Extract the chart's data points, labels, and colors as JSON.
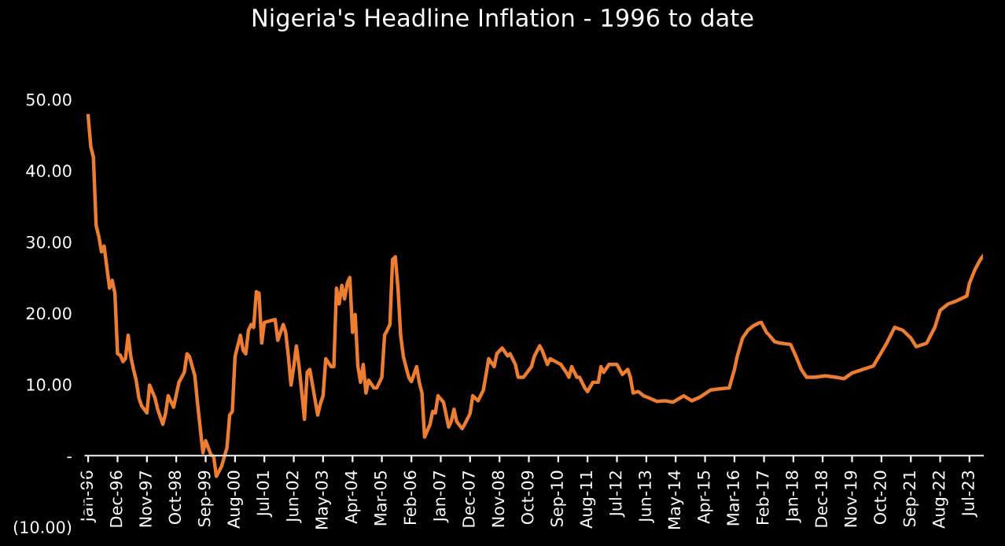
{
  "chart_data": {
    "type": "line",
    "title": "Nigeria's Headline Inflation - 1996 to date",
    "x": [
      "1996-01",
      "1996-02",
      "1996-03",
      "1996-04",
      "1996-05",
      "1996-06",
      "1996-07",
      "1996-09",
      "1996-10",
      "1996-11",
      "1996-12",
      "1997-01",
      "1997-02",
      "1997-03",
      "1997-04",
      "1997-05",
      "1997-06",
      "1997-07",
      "1997-08",
      "1997-09",
      "1997-11",
      "1997-12",
      "1998-02",
      "1998-03",
      "1998-05",
      "1998-06",
      "1998-07",
      "1998-09",
      "1998-11",
      "1999-01",
      "1999-02",
      "1999-03",
      "1999-05",
      "1999-06",
      "1999-08",
      "1999-09",
      "1999-11",
      "1999-12",
      "2000-01",
      "2000-03",
      "2000-05",
      "2000-06",
      "2000-07",
      "2000-08",
      "2000-10",
      "2000-11",
      "2000-12",
      "2001-01",
      "2001-02",
      "2001-03",
      "2001-04",
      "2001-05",
      "2001-06",
      "2001-07",
      "2001-09",
      "2001-11",
      "2001-12",
      "2002-02",
      "2002-03",
      "2002-04",
      "2002-05",
      "2002-06",
      "2002-07",
      "2002-08",
      "2002-09",
      "2002-10",
      "2002-11",
      "2002-12",
      "2003-01",
      "2003-03",
      "2003-04",
      "2003-05",
      "2003-06",
      "2003-08",
      "2003-09",
      "2003-10",
      "2003-11",
      "2003-12",
      "2004-01",
      "2004-02",
      "2004-03",
      "2004-04",
      "2004-05",
      "2004-06",
      "2004-07",
      "2004-08",
      "2004-09",
      "2004-10",
      "2004-12",
      "2005-01",
      "2005-03",
      "2005-04",
      "2005-05",
      "2005-06",
      "2005-07",
      "2005-08",
      "2005-09",
      "2005-10",
      "2005-11",
      "2006-01",
      "2006-02",
      "2006-03",
      "2006-04",
      "2006-05",
      "2006-06",
      "2006-07",
      "2006-09",
      "2006-10",
      "2006-11",
      "2006-12",
      "2007-02",
      "2007-03",
      "2007-04",
      "2007-05",
      "2007-06",
      "2007-07",
      "2007-09",
      "2007-10",
      "2007-12",
      "2008-01",
      "2008-03",
      "2008-05",
      "2008-07",
      "2008-09",
      "2008-10",
      "2008-12",
      "2009-02",
      "2009-03",
      "2009-05",
      "2009-06",
      "2009-08",
      "2009-11",
      "2009-12",
      "2010-02",
      "2010-03",
      "2010-05",
      "2010-06",
      "2010-08",
      "2010-10",
      "2010-12",
      "2011-01",
      "2011-02",
      "2011-04",
      "2011-05",
      "2011-07",
      "2011-08",
      "2011-10",
      "2011-12",
      "2012-01",
      "2012-02",
      "2012-04",
      "2012-07",
      "2012-09",
      "2012-11",
      "2012-12",
      "2013-01",
      "2013-03",
      "2013-05",
      "2013-07",
      "2013-10",
      "2014-01",
      "2014-04",
      "2014-08",
      "2014-11",
      "2015-02",
      "2015-06",
      "2015-10",
      "2016-01",
      "2016-03",
      "2016-04",
      "2016-06",
      "2016-08",
      "2016-10",
      "2016-12",
      "2017-01",
      "2017-03",
      "2017-04",
      "2017-06",
      "2017-08",
      "2017-12",
      "2018-02",
      "2018-04",
      "2018-06",
      "2018-09",
      "2019-01",
      "2019-05",
      "2019-08",
      "2019-11",
      "2020-03",
      "2020-07",
      "2020-09",
      "2020-12",
      "2021-03",
      "2021-06",
      "2021-09",
      "2021-11",
      "2021-12",
      "2022-03",
      "2022-06",
      "2022-08",
      "2022-11",
      "2023-02",
      "2023-06",
      "2023-07",
      "2023-09",
      "2023-11",
      "2023-12"
    ],
    "series": [
      {
        "color": "#ed7d31",
        "values": [
          47.7,
          43.3,
          41.9,
          32.3,
          30.8,
          28.6,
          29.4,
          23.5,
          24.6,
          22.8,
          14.3,
          14.1,
          13.2,
          13.6,
          16.9,
          13.9,
          12.1,
          10.6,
          8.1,
          7.0,
          6.0,
          9.9,
          8.1,
          6.6,
          4.4,
          5.9,
          8.4,
          6.8,
          10.3,
          11.7,
          14.3,
          13.9,
          11.2,
          7.3,
          0.4,
          2.1,
          0.1,
          -0.1,
          -2.9,
          -1.5,
          1.1,
          5.7,
          6.2,
          13.9,
          16.9,
          14.8,
          14.3,
          17.6,
          18.4,
          18.0,
          23.0,
          22.8,
          15.8,
          18.7,
          18.9,
          19.1,
          16.2,
          18.4,
          17.3,
          13.9,
          9.9,
          12.5,
          15.4,
          12.5,
          8.8,
          5.1,
          11.7,
          12.1,
          9.9,
          5.7,
          7.3,
          8.4,
          13.6,
          12.5,
          12.5,
          23.5,
          21.3,
          23.9,
          22.0,
          24.2,
          25.0,
          17.3,
          19.8,
          12.5,
          10.3,
          12.8,
          8.8,
          10.6,
          9.5,
          9.5,
          11.0,
          16.9,
          17.6,
          18.4,
          27.5,
          27.9,
          23.5,
          16.9,
          13.9,
          11.0,
          10.4,
          11.4,
          12.5,
          10.3,
          8.8,
          2.6,
          4.4,
          6.2,
          6.0,
          8.4,
          7.5,
          5.9,
          4.0,
          4.8,
          6.5,
          4.8,
          3.8,
          4.4,
          5.9,
          8.4,
          7.7,
          9.2,
          13.6,
          12.5,
          14.3,
          15.1,
          14.0,
          14.3,
          12.8,
          11.0,
          11.0,
          12.5,
          13.9,
          15.4,
          14.8,
          12.8,
          13.6,
          13.2,
          12.8,
          11.7,
          11.0,
          12.5,
          11.0,
          11.0,
          9.5,
          9.0,
          10.3,
          10.3,
          12.5,
          11.7,
          12.8,
          12.8,
          11.4,
          12.1,
          11.0,
          8.8,
          9.0,
          8.4,
          8.1,
          7.6,
          7.7,
          7.5,
          8.4,
          7.7,
          8.2,
          9.2,
          9.4,
          9.5,
          12.1,
          13.9,
          16.5,
          17.6,
          18.2,
          18.6,
          18.7,
          17.3,
          16.9,
          16.0,
          15.8,
          15.6,
          13.9,
          12.1,
          11.0,
          11.0,
          11.2,
          11.0,
          10.8,
          11.6,
          12.1,
          12.6,
          13.9,
          15.8,
          18.0,
          17.6,
          16.5,
          15.3,
          15.4,
          15.8,
          18.0,
          20.4,
          21.3,
          21.7,
          22.4,
          24.2,
          26.1,
          27.5,
          28.0
        ]
      }
    ],
    "xlim": [
      "1995-12",
      "2023-12"
    ],
    "xticks": [
      {
        "value": "1996-01",
        "label": "Jan-96"
      },
      {
        "value": "1996-12",
        "label": "Dec-96"
      },
      {
        "value": "1997-11",
        "label": "Nov-97"
      },
      {
        "value": "1998-10",
        "label": "Oct-98"
      },
      {
        "value": "1999-09",
        "label": "Sep-99"
      },
      {
        "value": "2000-08",
        "label": "Aug-00"
      },
      {
        "value": "2001-07",
        "label": "Jul-01"
      },
      {
        "value": "2002-06",
        "label": "Jun-02"
      },
      {
        "value": "2003-05",
        "label": "May-03"
      },
      {
        "value": "2004-04",
        "label": "Apr-04"
      },
      {
        "value": "2005-03",
        "label": "Mar-05"
      },
      {
        "value": "2006-02",
        "label": "Feb-06"
      },
      {
        "value": "2007-01",
        "label": "Jan-07"
      },
      {
        "value": "2007-12",
        "label": "Dec-07"
      },
      {
        "value": "2008-11",
        "label": "Nov-08"
      },
      {
        "value": "2009-10",
        "label": "Oct-09"
      },
      {
        "value": "2010-09",
        "label": "Sep-10"
      },
      {
        "value": "2011-08",
        "label": "Aug-11"
      },
      {
        "value": "2012-07",
        "label": "Jul-12"
      },
      {
        "value": "2013-06",
        "label": "Jun-13"
      },
      {
        "value": "2014-05",
        "label": "May-14"
      },
      {
        "value": "2015-04",
        "label": "Apr-15"
      },
      {
        "value": "2016-03",
        "label": "Mar-16"
      },
      {
        "value": "2017-02",
        "label": "Feb-17"
      },
      {
        "value": "2018-01",
        "label": "Jan-18"
      },
      {
        "value": "2018-12",
        "label": "Dec-18"
      },
      {
        "value": "2019-11",
        "label": "Nov-19"
      },
      {
        "value": "2020-10",
        "label": "Oct-20"
      },
      {
        "value": "2021-09",
        "label": "Sep-21"
      },
      {
        "value": "2022-08",
        "label": "Aug-22"
      },
      {
        "value": "2023-07",
        "label": "Jul-23"
      }
    ],
    "ylim": [
      -10,
      50
    ],
    "yticks": [
      {
        "value": -10,
        "label": "(10.00)"
      },
      {
        "value": 0,
        "label": "-"
      },
      {
        "value": 10,
        "label": "10.00"
      },
      {
        "value": 20,
        "label": "20.00"
      },
      {
        "value": 30,
        "label": "30.00"
      },
      {
        "value": 40,
        "label": "40.00"
      },
      {
        "value": 50,
        "label": "50.00"
      }
    ],
    "grid": false,
    "marker": "none",
    "line_style": "solid"
  }
}
